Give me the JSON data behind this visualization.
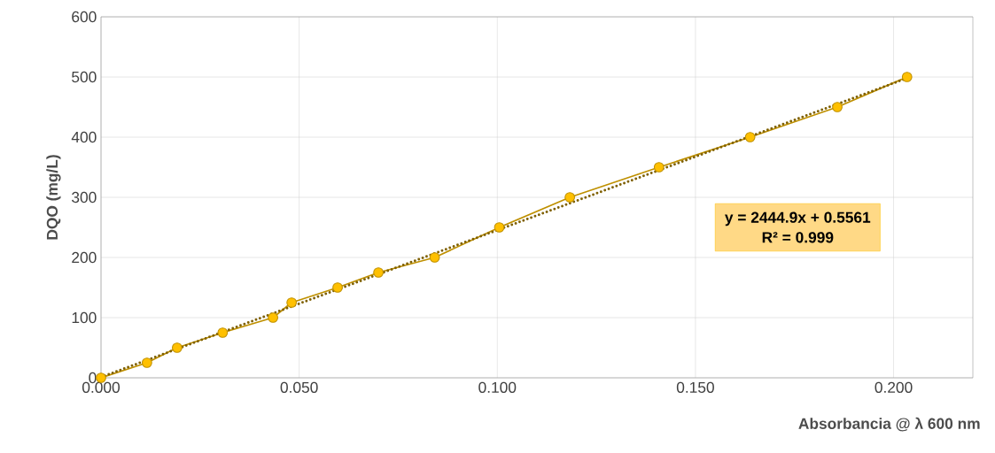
{
  "chart_data": {
    "type": "line",
    "xlabel": "Absorbancia @ λ 600 nm",
    "ylabel": "DQO (mg/L)",
    "series": [
      {
        "color": "#ffc000",
        "marker": "circle",
        "line_style": "solid",
        "x": [
          0,
          0.0116,
          0.0192,
          0.0307,
          0.0434,
          0.0481,
          0.0597,
          0.07,
          0.0842,
          0.1005,
          0.1183,
          0.1408,
          0.1638,
          0.1858,
          0.2034
        ],
        "values": [
          0,
          25,
          50,
          75,
          100,
          125,
          150,
          175,
          200,
          250,
          300,
          350,
          400,
          450,
          500
        ]
      },
      {
        "color": "#7f6000",
        "marker": "none",
        "line_style": "dotted",
        "x": [
          0,
          0.2034
        ],
        "values": [
          1,
          498
        ]
      }
    ],
    "xlim": [
      0,
      0.22
    ],
    "ylim": [
      0,
      600
    ],
    "xticks": [
      {
        "value": 0,
        "label": "0.000"
      },
      {
        "value": 0.05,
        "label": "0.050"
      },
      {
        "value": 0.1,
        "label": "0.100"
      },
      {
        "value": 0.15,
        "label": "0.150"
      },
      {
        "value": 0.2,
        "label": "0.200"
      }
    ],
    "yticks": [
      0,
      100,
      200,
      300,
      400,
      500,
      600
    ],
    "grid": true,
    "annotations": [
      "y = 2444.9x + 0.5561",
      "R² = 0.999"
    ]
  }
}
